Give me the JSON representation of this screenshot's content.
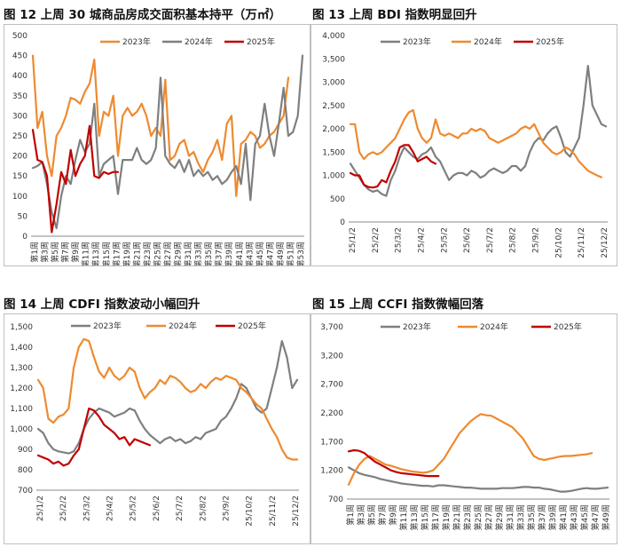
{
  "colors": {
    "c2023": "#EE8A2F",
    "c2024": "#7F7F7F",
    "c2025": "#C00000"
  },
  "chart_data": [
    {
      "id": "c12",
      "type": "line",
      "title": "图 12 上周 30 城商品房成交面积基本持平（万㎡）",
      "ylim": [
        0,
        500
      ],
      "yticks": [
        "0",
        "50",
        "100",
        "150",
        "200",
        "250",
        "300",
        "350",
        "400",
        "450",
        "500"
      ],
      "xlabels": [
        "第1周",
        "第3周",
        "第5周",
        "第7周",
        "第9周",
        "第11周",
        "第13周",
        "第15周",
        "第17周",
        "第19周",
        "第21周",
        "第23周",
        "第25周",
        "第27周",
        "第29周",
        "第31周",
        "第33周",
        "第35周",
        "第37周",
        "第39周",
        "第41周",
        "第43周",
        "第45周",
        "第47周",
        "第49周",
        "第51周",
        "第53周"
      ],
      "legend": [
        "2023年",
        "2024年",
        "2025年"
      ],
      "series": [
        {
          "name": "2023年",
          "color": "#EE8A2F",
          "values": [
            450,
            270,
            310,
            200,
            150,
            250,
            270,
            300,
            345,
            340,
            330,
            360,
            380,
            440,
            250,
            310,
            300,
            350,
            200,
            300,
            320,
            300,
            310,
            330,
            300,
            250,
            270,
            250,
            390,
            190,
            200,
            230,
            240,
            200,
            210,
            180,
            160,
            190,
            210,
            240,
            190,
            280,
            300,
            100,
            230,
            240,
            260,
            250,
            220,
            230,
            250,
            260,
            280,
            300,
            395
          ]
        },
        {
          "name": "2024年",
          "color": "#7F7F7F",
          "values": [
            170,
            175,
            185,
            130,
            60,
            20,
            100,
            150,
            130,
            190,
            240,
            210,
            230,
            330,
            150,
            180,
            190,
            200,
            105,
            190,
            190,
            190,
            220,
            190,
            180,
            190,
            220,
            395,
            200,
            180,
            170,
            190,
            160,
            190,
            150,
            165,
            150,
            160,
            140,
            150,
            130,
            140,
            160,
            175,
            130,
            230,
            90,
            230,
            250,
            330,
            250,
            200,
            280,
            370,
            250,
            260,
            300,
            450
          ]
        },
        {
          "name": "2025年",
          "color": "#C00000",
          "values": [
            265,
            190,
            185,
            150,
            10,
            80,
            160,
            130,
            215,
            150,
            180,
            200,
            275,
            150,
            145,
            160,
            155,
            160,
            160
          ]
        }
      ]
    },
    {
      "id": "c13",
      "type": "line",
      "title": "图 13 上周 BDI 指数明显回升",
      "ylim": [
        0,
        4000
      ],
      "yticks": [
        "0",
        "500",
        "1,000",
        "1,500",
        "2,000",
        "2,500",
        "3,000",
        "3,500",
        "4,000"
      ],
      "xlabels": [
        "25/1/2",
        "25/2/2",
        "25/3/2",
        "25/4/2",
        "25/5/2",
        "25/6/2",
        "25/7/2",
        "25/8/2",
        "25/9/2",
        "25/10/2",
        "25/11/2",
        "25/12/2"
      ],
      "legend": [
        "2023年",
        "2024年",
        "2025年"
      ],
      "series": [
        {
          "name": "2023年",
          "color": "#7F7F7F",
          "values": [
            1250,
            1100,
            950,
            800,
            700,
            650,
            680,
            600,
            560,
            900,
            1100,
            1400,
            1600,
            1500,
            1400,
            1350,
            1450,
            1500,
            1600,
            1400,
            1300,
            1100,
            900,
            1000,
            1050,
            1050,
            1000,
            1100,
            1050,
            950,
            1000,
            1100,
            1150,
            1100,
            1050,
            1100,
            1200,
            1200,
            1100,
            1200,
            1500,
            1700,
            1800,
            1750,
            1900,
            2000,
            2050,
            1800,
            1500,
            1400,
            1600,
            1800,
            2500,
            3350,
            2500,
            2300,
            2100,
            2050
          ]
        },
        {
          "name": "2024年",
          "color": "#EE8A2F",
          "values": [
            2100,
            2100,
            1500,
            1350,
            1450,
            1500,
            1450,
            1500,
            1600,
            1700,
            1800,
            2000,
            2200,
            2350,
            2400,
            2000,
            1800,
            1700,
            1800,
            2200,
            1900,
            1850,
            1900,
            1850,
            1800,
            1900,
            1900,
            2000,
            1950,
            2000,
            1950,
            1800,
            1750,
            1700,
            1750,
            1800,
            1850,
            1900,
            2000,
            2050,
            2000,
            2100,
            1900,
            1700,
            1600,
            1500,
            1450,
            1500,
            1600,
            1550,
            1450,
            1300,
            1200,
            1100,
            1050,
            1000,
            960
          ]
        },
        {
          "name": "2025年",
          "color": "#C00000",
          "values": [
            1050,
            1000,
            1000,
            800,
            750,
            740,
            760,
            900,
            850,
            1100,
            1300,
            1600,
            1650,
            1650,
            1500,
            1300,
            1350,
            1400,
            1300,
            1250
          ]
        }
      ]
    },
    {
      "id": "c14",
      "type": "line",
      "title": "图 14 上周 CDFI 指数波动小幅回升",
      "ylim": [
        700,
        1500
      ],
      "yticks": [
        "700",
        "800",
        "900",
        "1,000",
        "1,100",
        "1,200",
        "1,300",
        "1,400",
        "1,500"
      ],
      "xlabels": [
        "25/1/2",
        "25/2/2",
        "25/3/2",
        "25/4/2",
        "25/5/2",
        "25/6/2",
        "25/7/2",
        "25/8/2",
        "25/9/2",
        "25/10/2",
        "25/11/2",
        "25/12/2"
      ],
      "legend": [
        "2023年",
        "2024年",
        "2025年"
      ],
      "series": [
        {
          "name": "2023年",
          "color": "#7F7F7F",
          "values": [
            1000,
            980,
            930,
            900,
            890,
            885,
            880,
            890,
            930,
            1000,
            1050,
            1080,
            1100,
            1090,
            1080,
            1060,
            1070,
            1080,
            1100,
            1090,
            1040,
            1000,
            970,
            950,
            930,
            950,
            960,
            940,
            950,
            930,
            940,
            960,
            950,
            980,
            990,
            1000,
            1040,
            1060,
            1100,
            1150,
            1220,
            1200,
            1150,
            1100,
            1080,
            1100,
            1200,
            1300,
            1430,
            1350,
            1200,
            1240
          ]
        },
        {
          "name": "2024年",
          "color": "#EE8A2F",
          "values": [
            1240,
            1200,
            1050,
            1030,
            1060,
            1070,
            1100,
            1300,
            1400,
            1440,
            1430,
            1350,
            1280,
            1250,
            1300,
            1260,
            1240,
            1260,
            1300,
            1280,
            1200,
            1150,
            1180,
            1200,
            1240,
            1220,
            1260,
            1250,
            1230,
            1200,
            1180,
            1190,
            1220,
            1200,
            1230,
            1250,
            1240,
            1260,
            1250,
            1240,
            1200,
            1180,
            1150,
            1120,
            1100,
            1050,
            1000,
            960,
            900,
            860,
            850,
            850
          ]
        },
        {
          "name": "2025年",
          "color": "#C00000",
          "values": [
            870,
            860,
            850,
            830,
            840,
            820,
            830,
            870,
            900,
            1000,
            1100,
            1090,
            1060,
            1020,
            1000,
            980,
            950,
            960,
            920,
            950,
            940,
            930,
            920
          ]
        }
      ]
    },
    {
      "id": "c15",
      "type": "line",
      "title": "图 15 上周 CCFI 指数微幅回落",
      "ylim": [
        700,
        3700
      ],
      "yticks": [
        "700",
        "1,200",
        "1,700",
        "2,200",
        "2,700",
        "3,200",
        "3,700"
      ],
      "xlabels": [
        "第1周",
        "第3周",
        "第5周",
        "第7周",
        "第9周",
        "第11周",
        "第13周",
        "第15周",
        "第17周",
        "第19周",
        "第21周",
        "第23周",
        "第25周",
        "第27周",
        "第29周",
        "第31周",
        "第33周",
        "第35周",
        "第37周",
        "第39周",
        "第41周",
        "第43周",
        "第45周",
        "第47周",
        "第49周"
      ],
      "legend": [
        "2023年",
        "2024年",
        "2025年"
      ],
      "series": [
        {
          "name": "2023年",
          "color": "#7F7F7F",
          "values": [
            1250,
            1200,
            1150,
            1120,
            1100,
            1080,
            1050,
            1030,
            1010,
            990,
            970,
            960,
            950,
            940,
            930,
            930,
            920,
            940,
            940,
            930,
            920,
            910,
            900,
            900,
            890,
            880,
            880,
            880,
            880,
            890,
            890,
            890,
            900,
            910,
            910,
            900,
            900,
            880,
            870,
            850,
            830,
            830,
            840,
            860,
            880,
            890,
            880,
            880,
            890,
            900
          ]
        },
        {
          "name": "2024年",
          "color": "#EE8A2F",
          "values": [
            950,
            1150,
            1300,
            1400,
            1450,
            1400,
            1350,
            1300,
            1280,
            1250,
            1220,
            1200,
            1180,
            1170,
            1160,
            1170,
            1200,
            1300,
            1400,
            1550,
            1700,
            1850,
            1950,
            2050,
            2120,
            2180,
            2160,
            2150,
            2100,
            2050,
            2000,
            1950,
            1850,
            1750,
            1600,
            1450,
            1400,
            1380,
            1400,
            1420,
            1440,
            1450,
            1450,
            1460,
            1470,
            1480,
            1500
          ]
        },
        {
          "name": "2025年",
          "color": "#C00000",
          "values": [
            1530,
            1550,
            1540,
            1500,
            1420,
            1350,
            1300,
            1250,
            1200,
            1170,
            1150,
            1140,
            1130,
            1120,
            1110,
            1100,
            1100,
            1100
          ]
        }
      ]
    }
  ]
}
